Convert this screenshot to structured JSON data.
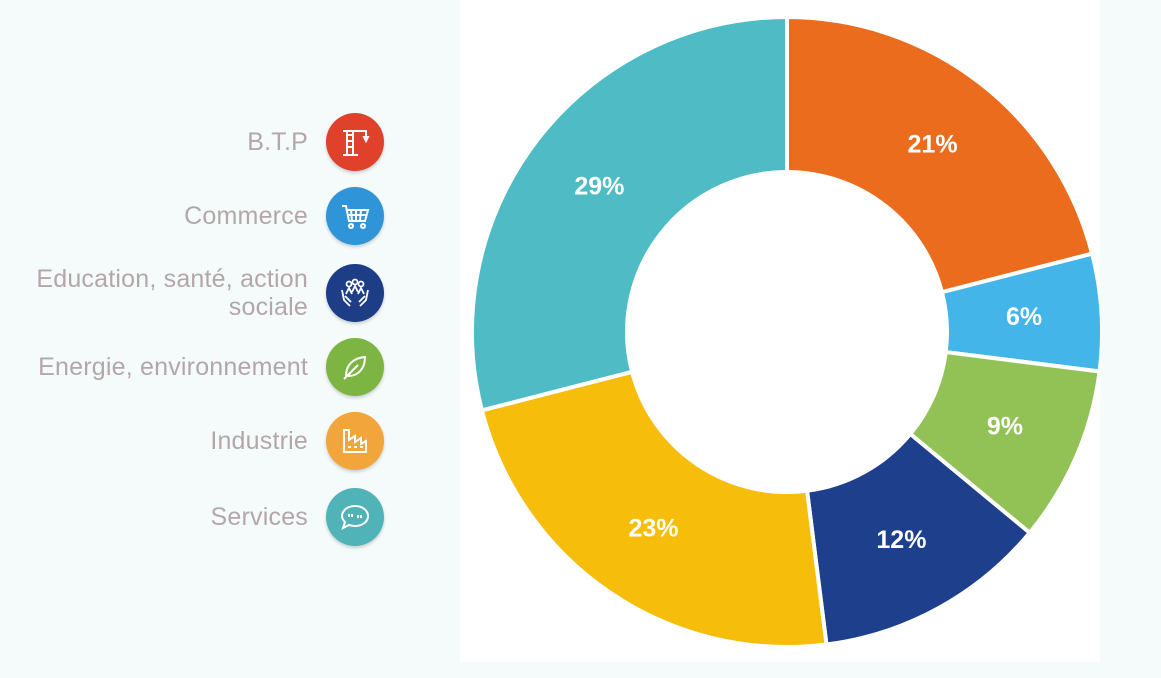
{
  "legend": {
    "items": [
      {
        "label": "B.T.P",
        "icon": "crane-icon",
        "color": "#e0412b"
      },
      {
        "label": "Commerce",
        "icon": "shopping-cart-icon",
        "color": "#2f95d8"
      },
      {
        "label": "Education, santé, action sociale",
        "icon": "helping-hands-icon",
        "color": "#1d3e87"
      },
      {
        "label": "Energie, environnement",
        "icon": "leaf-icon",
        "color": "#7db543"
      },
      {
        "label": "Industrie",
        "icon": "factory-icon",
        "color": "#f2a53a"
      },
      {
        "label": "Services",
        "icon": "speech-bubble-icon",
        "color": "#4fb3b8"
      }
    ]
  },
  "chart_data": {
    "type": "pie",
    "categories": [
      "B.T.P",
      "Commerce",
      "Energie, environnement",
      "Education, santé, action sociale",
      "Industrie",
      "Services"
    ],
    "values": [
      21,
      6,
      9,
      12,
      23,
      29
    ],
    "labels": [
      "21%",
      "6%",
      "9%",
      "12%",
      "23%",
      "29%"
    ],
    "colors": [
      "#ec6c1e",
      "#43b5e8",
      "#92c255",
      "#1e3f8b",
      "#f7bd0b",
      "#4fbcc5"
    ],
    "donut": true,
    "start": "12 o'clock, clockwise"
  }
}
